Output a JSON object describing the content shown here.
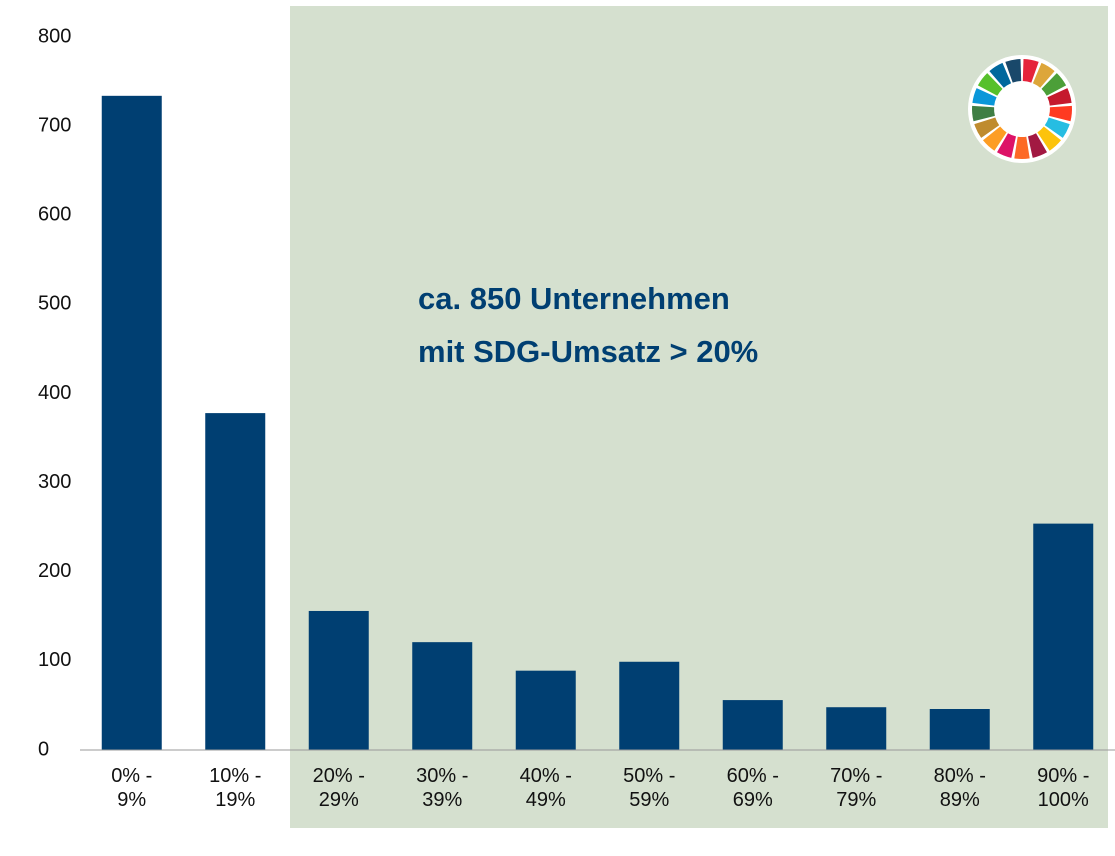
{
  "chart_data": {
    "type": "bar",
    "annotation": "ca. 850 Unternehmen\nmit SDG-Umsatz > 20%",
    "categories": [
      "0% -\n9%",
      "10% -\n19%",
      "20% -\n29%",
      "30% -\n39%",
      "40% -\n49%",
      "50% -\n59%",
      "60% -\n69%",
      "70% -\n79%",
      "80% -\n89%",
      "90% -\n100%"
    ],
    "values": [
      734,
      378,
      156,
      121,
      89,
      99,
      56,
      48,
      46,
      254
    ],
    "color": "#003f72",
    "ylim": [
      0,
      800
    ],
    "yticks": [
      0,
      100,
      200,
      300,
      400,
      500,
      600,
      700,
      800
    ],
    "grid": false
  }
}
